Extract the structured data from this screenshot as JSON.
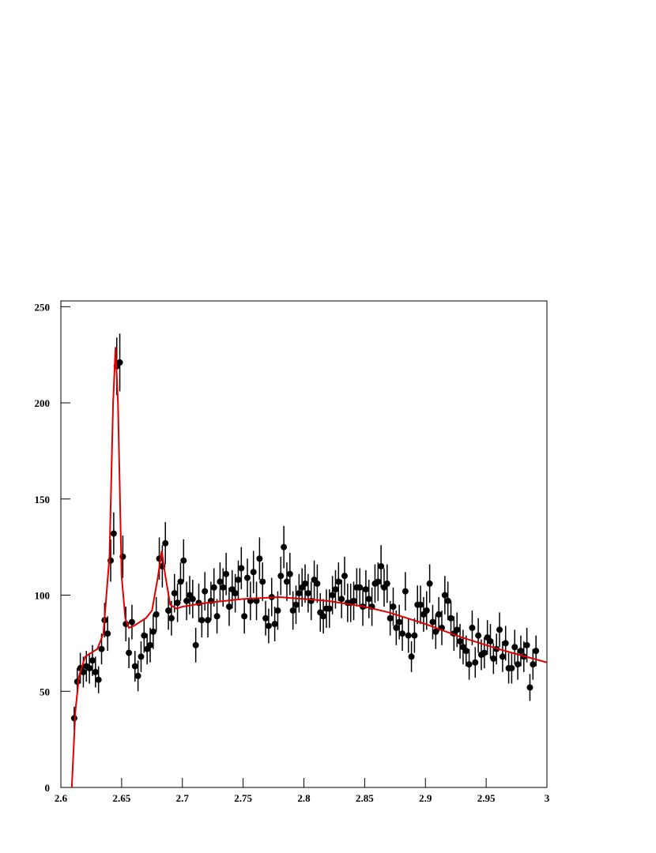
{
  "chart_data": {
    "type": "scatter",
    "xlim": [
      2.6,
      3.0
    ],
    "xticks": [
      {
        "value": 2.6,
        "label": "2.6"
      },
      2.65,
      {
        "value": 2.7,
        "label": "2.7"
      },
      2.75,
      {
        "value": 2.8,
        "label": "2.8"
      },
      2.85,
      {
        "value": 2.9,
        "label": "2.9"
      },
      2.95,
      3
    ],
    "ylim": [
      0,
      253
    ],
    "yticks": [
      0,
      50,
      100,
      150,
      200,
      250
    ],
    "color": "#000000",
    "x": [
      2.611,
      2.6135,
      2.616,
      2.6185,
      2.621,
      2.6235,
      2.626,
      2.6285,
      2.631,
      2.6335,
      2.636,
      2.6385,
      2.641,
      2.6435,
      2.646,
      2.6485,
      2.651,
      2.6535,
      2.656,
      2.6585,
      2.661,
      2.6635,
      2.666,
      2.6685,
      2.671,
      2.6735,
      2.676,
      2.6785,
      2.681,
      2.6835,
      2.686,
      2.6885,
      2.691,
      2.6935,
      2.696,
      2.6985,
      2.701,
      2.7035,
      2.706,
      2.7085,
      2.711,
      2.7135,
      2.716,
      2.7185,
      2.721,
      2.7235,
      2.726,
      2.7285,
      2.731,
      2.7335,
      2.736,
      2.7385,
      2.741,
      2.7435,
      2.746,
      2.7485,
      2.751,
      2.7535,
      2.756,
      2.7585,
      2.761,
      2.7635,
      2.766,
      2.7685,
      2.771,
      2.7735,
      2.776,
      2.7785,
      2.781,
      2.7835,
      2.786,
      2.7885,
      2.791,
      2.7935,
      2.796,
      2.7985,
      2.801,
      2.8035,
      2.806,
      2.8085,
      2.811,
      2.8135,
      2.816,
      2.8185,
      2.821,
      2.8235,
      2.826,
      2.8285,
      2.831,
      2.8335,
      2.836,
      2.8385,
      2.841,
      2.8435,
      2.846,
      2.8485,
      2.851,
      2.8535,
      2.856,
      2.8585,
      2.861,
      2.8635,
      2.866,
      2.8685,
      2.871,
      2.8735,
      2.876,
      2.8785,
      2.881,
      2.8835,
      2.886,
      2.8885,
      2.891,
      2.8935,
      2.896,
      2.8985,
      2.901,
      2.9035,
      2.906,
      2.9085,
      2.911,
      2.9135,
      2.916,
      2.9185,
      2.921,
      2.9235,
      2.926,
      2.9285,
      2.931,
      2.9335,
      2.936,
      2.9385,
      2.941,
      2.9435,
      2.946,
      2.9485,
      2.951,
      2.9535,
      2.956,
      2.9585,
      2.961,
      2.9635,
      2.966,
      2.9685,
      2.971,
      2.9735,
      2.976,
      2.9785,
      2.981,
      2.9835,
      2.986,
      2.9885,
      2.991
    ],
    "values": [
      36,
      55,
      62,
      60,
      63,
      62,
      66,
      60,
      56,
      72,
      87,
      80,
      118,
      132,
      219,
      221,
      120,
      85,
      70,
      86,
      63,
      58,
      68,
      79,
      72,
      74,
      81,
      90,
      119,
      115,
      127,
      92,
      88,
      101,
      96,
      107,
      118,
      97,
      100,
      98,
      74,
      96,
      87,
      102,
      87,
      97,
      104,
      89,
      107,
      104,
      111,
      94,
      103,
      101,
      108,
      114,
      89,
      109,
      97,
      112,
      97,
      119,
      107,
      88,
      84,
      99,
      85,
      92,
      110,
      125,
      107,
      111,
      92,
      95,
      101,
      104,
      106,
      101,
      97,
      108,
      106,
      91,
      89,
      93,
      93,
      100,
      103,
      107,
      98,
      110,
      96,
      96,
      97,
      104,
      104,
      94,
      103,
      98,
      94,
      106,
      107,
      115,
      104,
      106,
      88,
      94,
      83,
      86,
      80,
      102,
      79,
      68,
      79,
      95,
      95,
      90,
      92,
      106,
      86,
      81,
      90,
      83,
      100,
      97,
      88,
      80,
      82,
      76,
      73,
      71,
      64,
      83,
      65,
      79,
      69,
      70,
      78,
      76,
      67,
      72,
      82,
      68,
      75,
      62,
      62,
      73,
      64,
      71,
      68,
      74,
      52,
      64,
      71
    ],
    "errors": [
      6,
      7,
      8,
      8,
      8,
      8,
      8,
      8,
      7,
      8,
      9,
      9,
      11,
      11,
      15,
      15,
      11,
      9,
      8,
      9,
      8,
      8,
      8,
      9,
      8,
      9,
      9,
      9,
      11,
      11,
      11,
      10,
      9,
      10,
      10,
      10,
      11,
      10,
      10,
      10,
      9,
      10,
      9,
      10,
      9,
      10,
      10,
      9,
      10,
      10,
      11,
      10,
      10,
      10,
      10,
      11,
      9,
      10,
      10,
      11,
      10,
      11,
      10,
      9,
      9,
      10,
      9,
      10,
      10,
      11,
      10,
      11,
      10,
      10,
      10,
      10,
      10,
      10,
      10,
      10,
      10,
      10,
      9,
      10,
      10,
      10,
      10,
      10,
      10,
      10,
      10,
      10,
      10,
      10,
      10,
      10,
      10,
      10,
      10,
      10,
      10,
      11,
      10,
      10,
      9,
      10,
      9,
      9,
      9,
      10,
      9,
      8,
      9,
      10,
      10,
      9,
      10,
      10,
      9,
      9,
      9,
      9,
      10,
      10,
      9,
      9,
      9,
      9,
      9,
      8,
      8,
      9,
      8,
      9,
      8,
      8,
      9,
      9,
      8,
      8,
      9,
      8,
      9,
      8,
      8,
      9,
      8,
      8,
      8,
      9,
      7,
      8,
      8
    ],
    "fit": {
      "type": "line",
      "color": "#e00000",
      "x": [
        2.609,
        2.612,
        2.615,
        2.62,
        2.63,
        2.635,
        2.64,
        2.643,
        2.645,
        2.647,
        2.65,
        2.653,
        2.656,
        2.66,
        2.67,
        2.675,
        2.68,
        2.683,
        2.686,
        2.69,
        2.695,
        2.7,
        2.72,
        2.75,
        2.78,
        2.8,
        2.82,
        2.85,
        2.87,
        2.9,
        2.93,
        2.96,
        3.0
      ],
      "values": [
        0,
        40,
        58,
        68,
        72,
        80,
        120,
        200,
        229,
        200,
        110,
        88,
        83,
        84,
        88,
        92,
        110,
        123,
        110,
        95,
        93,
        94,
        96,
        98,
        99,
        98,
        97,
        94,
        91,
        85,
        78,
        72,
        65
      ]
    }
  }
}
